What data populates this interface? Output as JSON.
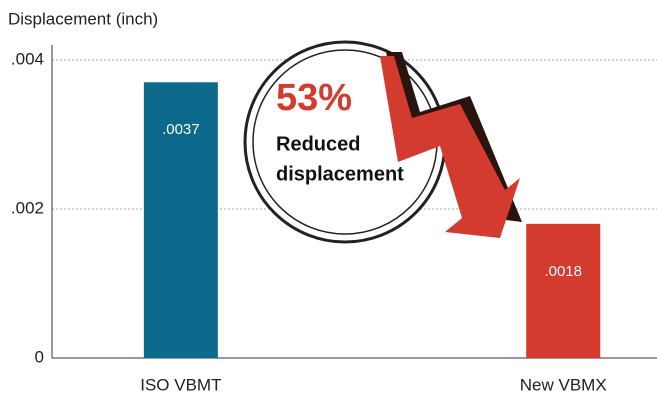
{
  "chart_data": {
    "type": "bar",
    "y_axis_label": "Displacement (inch)",
    "categories": [
      "ISO VBMT",
      "New VBMX"
    ],
    "values": [
      0.0037,
      0.0018
    ],
    "value_labels": [
      ".0037",
      ".0018"
    ],
    "colors": [
      "#0e6a8c",
      "#d33b2e"
    ],
    "ylim": [
      0,
      0.0042
    ],
    "yticks": [
      0,
      {
        "value": 0.002,
        "label": ".002"
      },
      {
        "value": 0.004,
        "label": ".004"
      }
    ],
    "grid": true,
    "annotation": {
      "headline": "53%",
      "lines": [
        "Reduced",
        "displacement"
      ]
    }
  }
}
